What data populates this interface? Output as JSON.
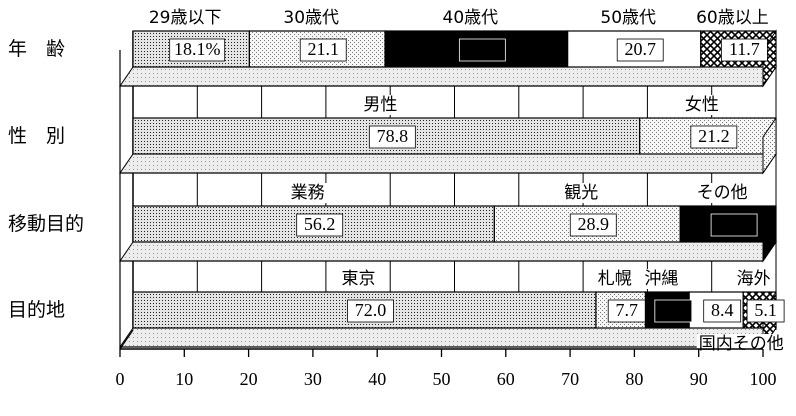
{
  "chart_data": {
    "type": "bar",
    "orientation": "horizontal",
    "stacked": "percent",
    "style": "3d",
    "xlim": [
      0,
      100
    ],
    "xticks": [
      "0",
      "10",
      "20",
      "30",
      "40",
      "50",
      "60",
      "70",
      "80",
      "90",
      "100"
    ],
    "grid": true,
    "rows": [
      {
        "label": "年　齢",
        "segments": [
          {
            "name": "29歳以下",
            "value": 18.1,
            "display": "18.1%",
            "fill": "dots"
          },
          {
            "name": "30歳代",
            "value": 21.1,
            "display": "21.1",
            "fill": "light"
          },
          {
            "name": "40歳代",
            "value": 28.4,
            "display": "28.4",
            "fill": "black"
          },
          {
            "name": "50歳代",
            "value": 20.7,
            "display": "20.7",
            "fill": "white"
          },
          {
            "name": "60歳以上",
            "value": 11.7,
            "display": "11.7",
            "fill": "cross"
          }
        ]
      },
      {
        "label": "性　別",
        "segments": [
          {
            "name": "男性",
            "value": 78.8,
            "display": "78.8",
            "fill": "dots"
          },
          {
            "name": "女性",
            "value": 21.2,
            "display": "21.2",
            "fill": "light"
          }
        ]
      },
      {
        "label": "移動目的",
        "segments": [
          {
            "name": "業務",
            "value": 56.2,
            "display": "56.2",
            "fill": "dots"
          },
          {
            "name": "観光",
            "value": 28.9,
            "display": "28.9",
            "fill": "light"
          },
          {
            "name": "その他",
            "value": 14.9,
            "display": "14.9",
            "fill": "black"
          }
        ]
      },
      {
        "label": "目的地",
        "segments": [
          {
            "name": "東京",
            "value": 72.0,
            "display": "72.0",
            "fill": "dots"
          },
          {
            "name": "札幌",
            "value": 7.7,
            "display": "7.7",
            "fill": "light"
          },
          {
            "name": "沖縄",
            "value": 6.8,
            "display": "6.8",
            "fill": "black"
          },
          {
            "name": "国内その他",
            "value": 8.4,
            "display": "8.4",
            "fill": "white"
          },
          {
            "name": "海外",
            "value": 5.1,
            "display": "5.1",
            "fill": "cross"
          }
        ]
      }
    ]
  }
}
